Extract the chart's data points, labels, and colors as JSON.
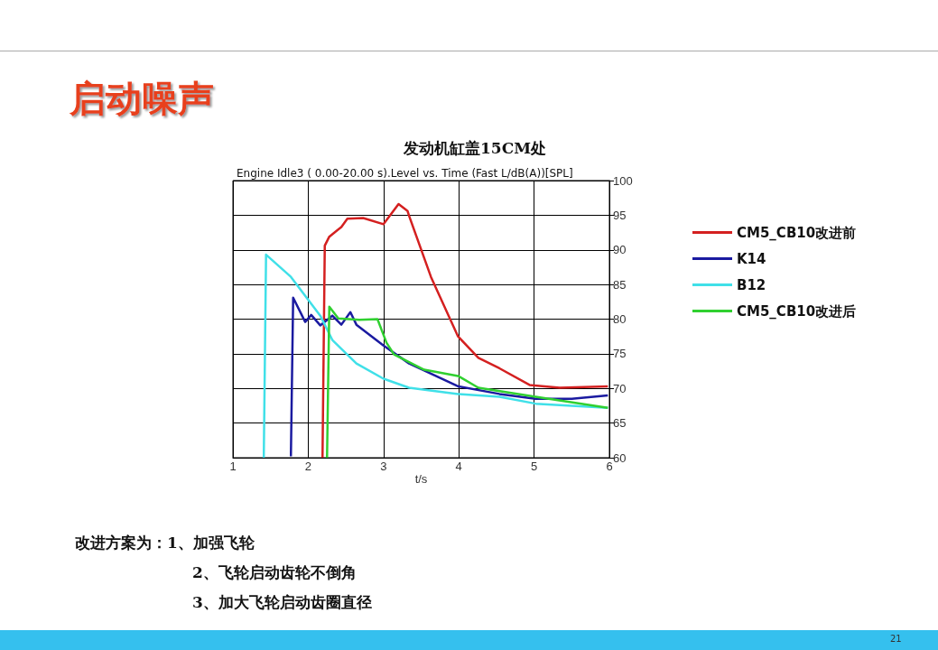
{
  "chart_data": {
    "type": "line",
    "title": "启动噪声",
    "subtitle": "发动机缸盖15CM处",
    "xlabel": "t/s",
    "annotations": [
      "Engine Idle3 ( 0.00-20.00 s).Level vs. Time (Fast L/dB(A))[SPL]",
      "改进方案为：1、加强飞轮",
      "2、飞轮启动齿轮不倒角",
      "3、加大飞轮启动齿圈直径",
      "21"
    ],
    "xlim": [
      1,
      6
    ],
    "xticks": [
      1,
      2,
      3,
      4,
      5,
      6
    ],
    "ylim": [
      60,
      100
    ],
    "yticks": [
      60,
      65,
      70,
      75,
      80,
      85,
      90,
      95,
      100
    ],
    "grid": true,
    "legend": "right",
    "marker": "none",
    "line_style": "solid",
    "series": [
      {
        "name": "CM5_CB10改进前",
        "color": "#d42020",
        "x": [
          2.19,
          2.22,
          2.28,
          2.44,
          2.52,
          2.73,
          3.0,
          3.2,
          3.32,
          3.34,
          3.63,
          3.99,
          4.26,
          4.54,
          4.94,
          5.34,
          5.98
        ],
        "values": [
          60,
          90.6,
          91.9,
          93.3,
          94.5,
          94.6,
          93.7,
          96.6,
          95.6,
          94.9,
          86.1,
          77.5,
          74.4,
          72.9,
          70.5,
          70.1,
          70.3
        ]
      },
      {
        "name": "K14",
        "color": "#1a1aa0",
        "x": [
          1.77,
          1.8,
          1.96,
          2.04,
          2.16,
          2.32,
          2.44,
          2.56,
          2.64,
          3.0,
          3.34,
          3.99,
          4.54,
          5.02,
          5.5,
          5.98
        ],
        "values": [
          60.2,
          83.1,
          79.6,
          80.6,
          79.1,
          80.5,
          79.2,
          81.0,
          79.2,
          76.2,
          73.6,
          70.3,
          69.2,
          68.5,
          68.5,
          69.0
        ]
      },
      {
        "name": "B12",
        "color": "#40e0e8",
        "x": [
          1.41,
          1.44,
          1.77,
          2.04,
          2.16,
          2.32,
          2.64,
          3.0,
          3.34,
          3.99,
          4.54,
          5.02,
          5.98
        ],
        "values": [
          60,
          89.3,
          86.1,
          82.2,
          80.5,
          77.0,
          73.6,
          71.4,
          70.1,
          69.2,
          68.8,
          67.8,
          67.2
        ]
      },
      {
        "name": "CM5_CB10改进后",
        "color": "#30d030",
        "x": [
          2.25,
          2.28,
          2.4,
          2.68,
          2.92,
          3.04,
          3.14,
          3.54,
          3.99,
          4.26,
          5.02,
          5.98
        ],
        "values": [
          60,
          81.8,
          80.1,
          79.9,
          80.0,
          76.6,
          74.9,
          72.7,
          71.8,
          70.1,
          68.8,
          67.2
        ]
      }
    ]
  }
}
